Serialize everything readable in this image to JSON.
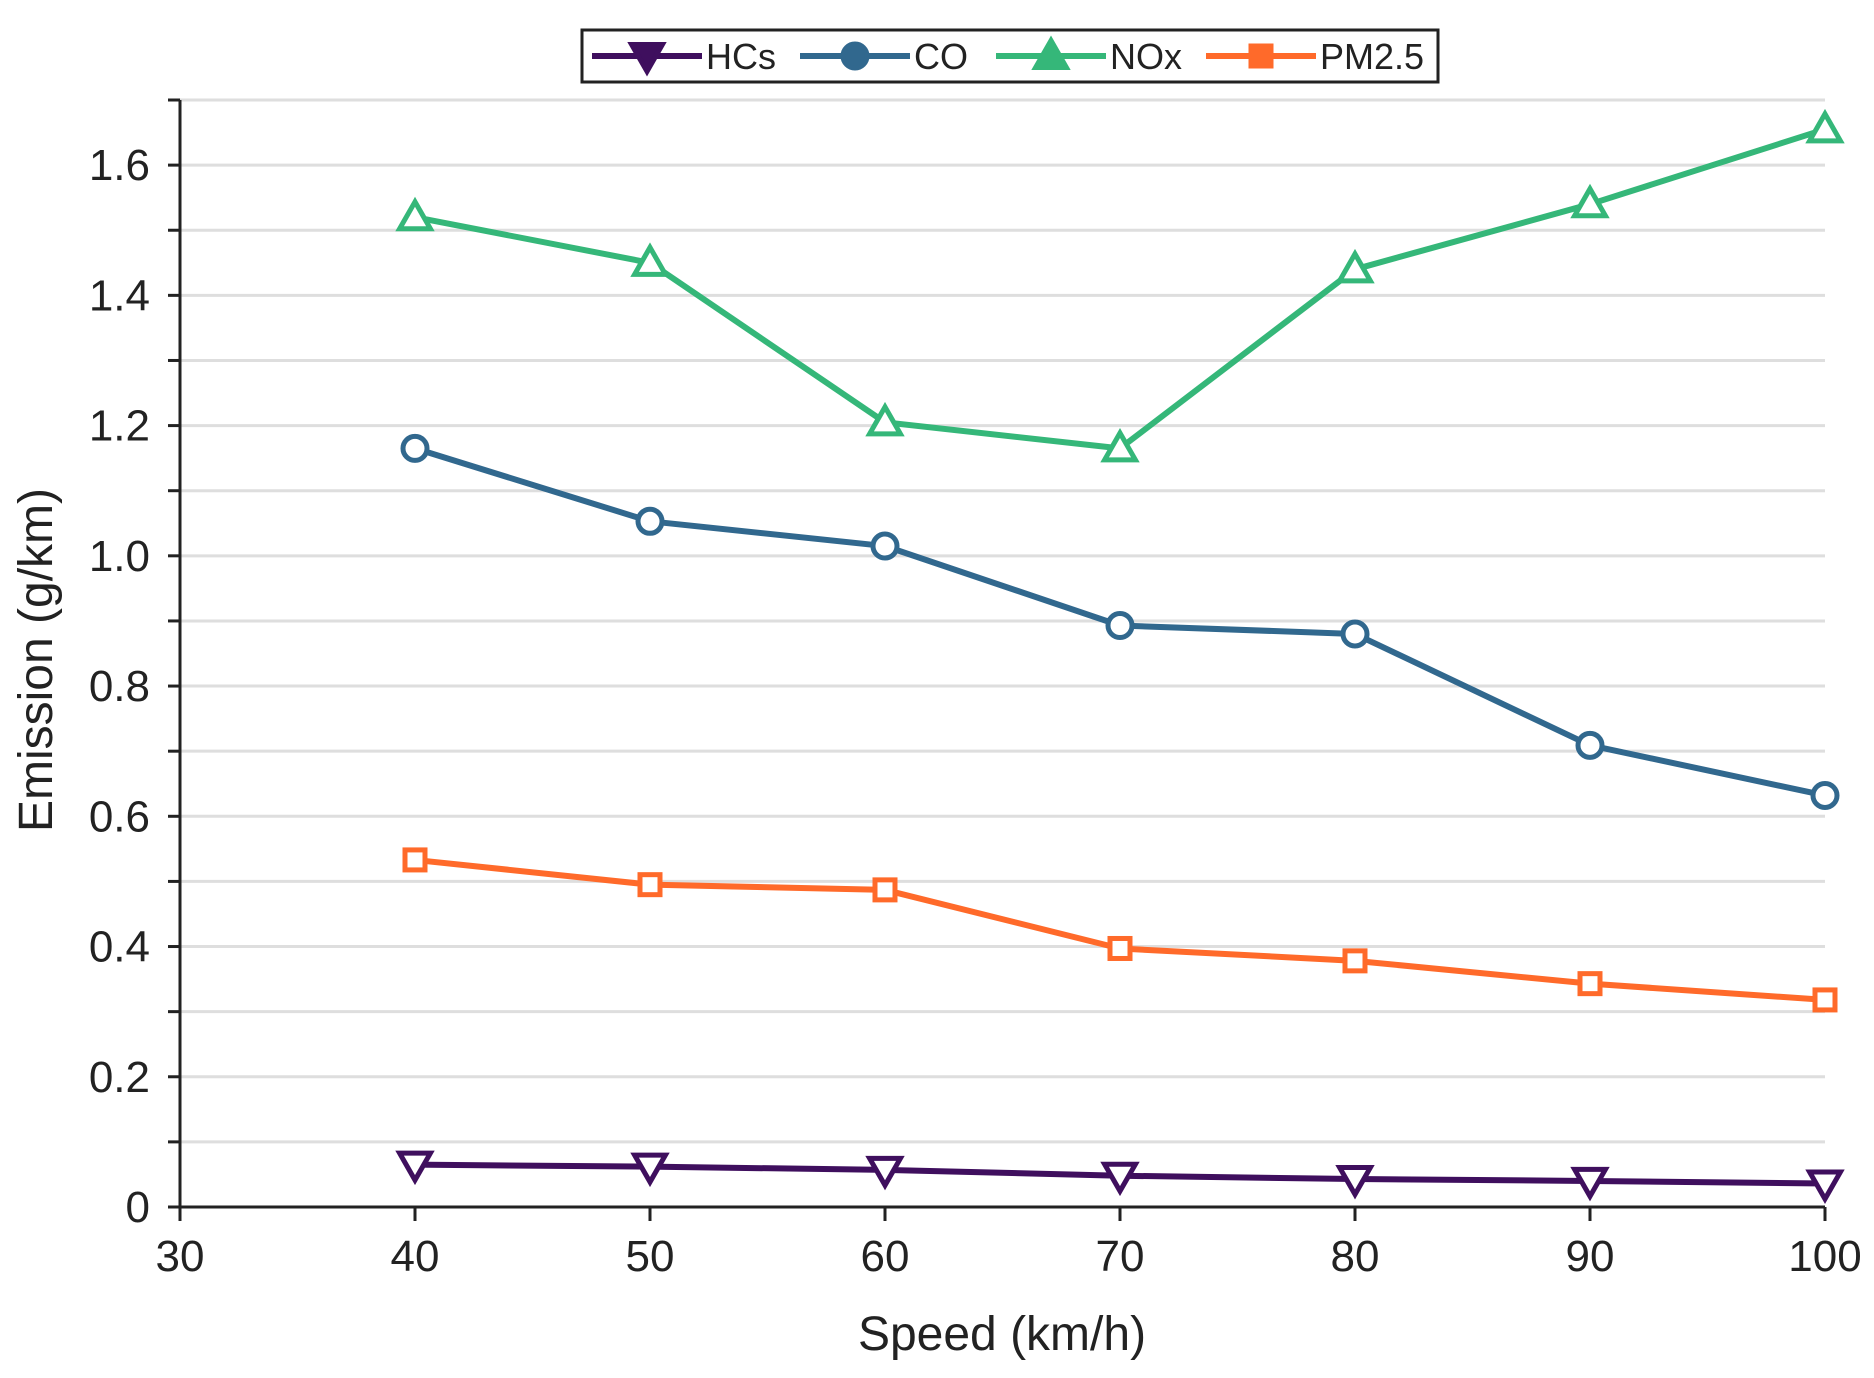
{
  "chart_data": {
    "type": "line",
    "title": "",
    "xlabel": "Speed (km/h)",
    "ylabel": "Emission (g/km)",
    "xlim": [
      30,
      100
    ],
    "ylim": [
      0,
      1.7
    ],
    "x_ticks": [
      30,
      40,
      50,
      60,
      70,
      80,
      90,
      100
    ],
    "x_tick_labels": [
      "30",
      "40",
      "50",
      "60",
      "70",
      "80",
      "90",
      "100"
    ],
    "y_ticks": [
      0,
      0.2,
      0.4,
      0.6,
      0.8,
      1.0,
      1.2,
      1.4,
      1.6
    ],
    "y_tick_labels": [
      "0",
      "0.2",
      "0.4",
      "0.6",
      "0.8",
      "1.0",
      "1.2",
      "1.4",
      "1.6"
    ],
    "y_minor_step": 0.1,
    "grid": "horizontal",
    "legend_position": "top-center",
    "x": [
      40,
      50,
      60,
      70,
      80,
      90,
      100
    ],
    "series": [
      {
        "name": "HCs",
        "color": "#3f0f5e",
        "marker": "triangle-down",
        "values": [
          0.065,
          0.062,
          0.057,
          0.048,
          0.043,
          0.04,
          0.036
        ]
      },
      {
        "name": "CO",
        "color": "#31688e",
        "marker": "circle",
        "values": [
          1.165,
          1.053,
          1.015,
          0.893,
          0.88,
          0.709,
          0.632
        ]
      },
      {
        "name": "NOx",
        "color": "#35b779",
        "marker": "triangle-up",
        "values": [
          1.52,
          1.45,
          1.205,
          1.165,
          1.44,
          1.54,
          1.655
        ]
      },
      {
        "name": "PM2.5",
        "color": "#ff6a2a",
        "marker": "square",
        "values": [
          0.533,
          0.495,
          0.487,
          0.397,
          0.378,
          0.343,
          0.318
        ]
      }
    ]
  }
}
